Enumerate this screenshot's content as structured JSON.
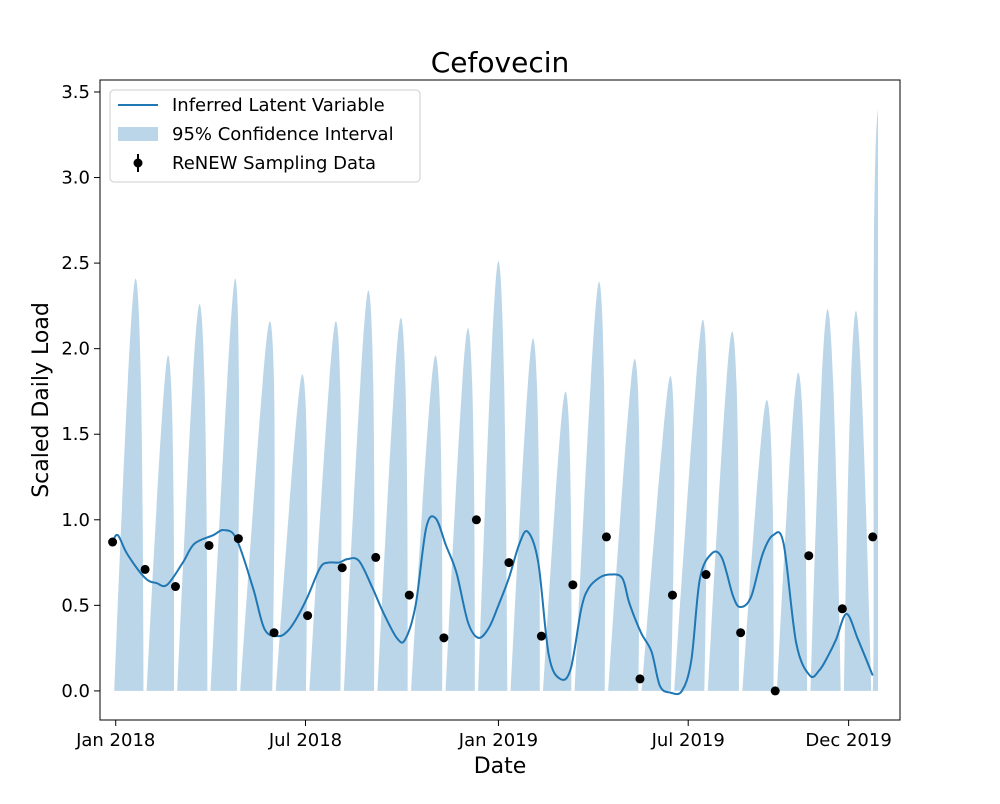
{
  "chart_data": {
    "type": "line",
    "title": "Cefovecin",
    "xlabel": "Date",
    "ylabel": "Scaled Daily Load",
    "xlim": [
      "2017-12-17",
      "2020-01-19"
    ],
    "ylim": [
      -0.17,
      3.57
    ],
    "grid": false,
    "legend_position": "top-left",
    "x_ticks": [
      {
        "date": "2018-01-01",
        "label": "Jan 2018"
      },
      {
        "date": "2018-07-01",
        "label": "Jul 2018"
      },
      {
        "date": "2019-01-01",
        "label": "Jan 2019"
      },
      {
        "date": "2019-07-01",
        "label": "Jul 2019"
      },
      {
        "date": "2019-12-01",
        "label": "Dec 2019"
      }
    ],
    "y_ticks": [
      0.0,
      0.5,
      1.0,
      1.5,
      2.0,
      2.5,
      3.0,
      3.5
    ],
    "y_tick_labels": [
      "0.0",
      "0.5",
      "1.0",
      "1.5",
      "2.0",
      "2.5",
      "3.0",
      "3.5"
    ],
    "series": [
      {
        "name": "Inferred Latent Variable",
        "kind": "line",
        "color": "#1f77b4",
        "x": [
          "2017-12-29",
          "2018-01-03",
          "2018-01-12",
          "2018-01-29",
          "2018-02-09",
          "2018-02-19",
          "2018-03-06",
          "2018-03-17",
          "2018-04-04",
          "2018-04-14",
          "2018-04-26",
          "2018-05-12",
          "2018-05-23",
          "2018-06-05",
          "2018-06-14",
          "2018-06-23",
          "2018-07-03",
          "2018-07-15",
          "2018-07-23",
          "2018-08-02",
          "2018-08-10",
          "2018-08-21",
          "2018-09-03",
          "2018-09-13",
          "2018-09-26",
          "2018-10-04",
          "2018-10-14",
          "2018-10-24",
          "2018-11-02",
          "2018-11-12",
          "2018-11-22",
          "2018-12-03",
          "2018-12-13",
          "2018-12-23",
          "2019-01-01",
          "2019-01-11",
          "2019-01-21",
          "2019-01-29",
          "2019-02-08",
          "2019-02-18",
          "2019-03-01",
          "2019-03-11",
          "2019-03-21",
          "2019-03-28",
          "2019-04-07",
          "2019-04-17",
          "2019-04-29",
          "2019-05-06",
          "2019-05-17",
          "2019-05-27",
          "2019-06-04",
          "2019-06-14",
          "2019-06-25",
          "2019-07-04",
          "2019-07-12",
          "2019-07-23",
          "2019-08-02",
          "2019-08-13",
          "2019-08-20",
          "2019-08-30",
          "2019-09-10",
          "2019-09-20",
          "2019-09-30",
          "2019-10-12",
          "2019-10-25",
          "2019-11-03",
          "2019-11-11",
          "2019-11-19",
          "2019-11-29",
          "2019-12-10",
          "2019-12-24"
        ],
        "y": [
          0.87,
          0.91,
          0.8,
          0.66,
          0.63,
          0.62,
          0.75,
          0.86,
          0.91,
          0.94,
          0.89,
          0.6,
          0.36,
          0.32,
          0.35,
          0.43,
          0.55,
          0.72,
          0.75,
          0.75,
          0.77,
          0.76,
          0.6,
          0.46,
          0.31,
          0.3,
          0.5,
          0.95,
          1.01,
          0.85,
          0.69,
          0.4,
          0.31,
          0.37,
          0.5,
          0.66,
          0.86,
          0.93,
          0.75,
          0.21,
          0.07,
          0.13,
          0.48,
          0.6,
          0.66,
          0.68,
          0.66,
          0.51,
          0.34,
          0.23,
          0.03,
          -0.01,
          0.0,
          0.18,
          0.65,
          0.8,
          0.78,
          0.55,
          0.49,
          0.55,
          0.8,
          0.91,
          0.86,
          0.28,
          0.09,
          0.12,
          0.2,
          0.3,
          0.45,
          0.3,
          0.09
        ]
      },
      {
        "name": "95% Confidence Interval",
        "kind": "band",
        "color": "#1f77b4",
        "alpha": 0.3,
        "lower": 0.0,
        "upper_peaks": [
          {
            "x": "2018-01-20",
            "y": 2.41
          },
          {
            "x": "2018-02-20",
            "y": 1.96
          },
          {
            "x": "2018-03-22",
            "y": 2.26
          },
          {
            "x": "2018-04-25",
            "y": 2.41
          },
          {
            "x": "2018-05-28",
            "y": 2.16
          },
          {
            "x": "2018-06-28",
            "y": 1.85
          },
          {
            "x": "2018-07-30",
            "y": 2.16
          },
          {
            "x": "2018-08-30",
            "y": 2.34
          },
          {
            "x": "2018-09-30",
            "y": 2.18
          },
          {
            "x": "2018-11-02",
            "y": 1.96
          },
          {
            "x": "2018-12-03",
            "y": 2.12
          },
          {
            "x": "2019-01-01",
            "y": 2.51
          },
          {
            "x": "2019-02-03",
            "y": 2.06
          },
          {
            "x": "2019-03-06",
            "y": 1.75
          },
          {
            "x": "2019-04-07",
            "y": 2.39
          },
          {
            "x": "2019-05-11",
            "y": 1.94
          },
          {
            "x": "2019-06-14",
            "y": 1.84
          },
          {
            "x": "2019-07-15",
            "y": 2.17
          },
          {
            "x": "2019-08-12",
            "y": 2.1
          },
          {
            "x": "2019-09-14",
            "y": 1.7
          },
          {
            "x": "2019-10-14",
            "y": 1.86
          },
          {
            "x": "2019-11-11",
            "y": 2.23
          },
          {
            "x": "2019-12-08",
            "y": 2.22
          }
        ],
        "upper_end": {
          "x": "2019-12-29",
          "y": 3.4
        }
      },
      {
        "name": "ReNEW Sampling Data",
        "kind": "points",
        "color": "#000000",
        "x": [
          "2017-12-29",
          "2018-01-29",
          "2018-02-27",
          "2018-03-31",
          "2018-04-28",
          "2018-06-01",
          "2018-07-03",
          "2018-08-05",
          "2018-09-06",
          "2018-10-08",
          "2018-11-10",
          "2018-12-11",
          "2019-01-11",
          "2019-02-11",
          "2019-03-13",
          "2019-04-14",
          "2019-05-16",
          "2019-06-16",
          "2019-07-18",
          "2019-08-20",
          "2019-09-22",
          "2019-10-24",
          "2019-11-25",
          "2019-12-24"
        ],
        "y": [
          0.87,
          0.71,
          0.61,
          0.85,
          0.89,
          0.34,
          0.44,
          0.72,
          0.78,
          0.56,
          0.31,
          1.0,
          0.75,
          0.32,
          0.62,
          0.9,
          0.07,
          0.56,
          0.68,
          0.34,
          0.0,
          0.79,
          0.48,
          0.9
        ]
      }
    ]
  }
}
